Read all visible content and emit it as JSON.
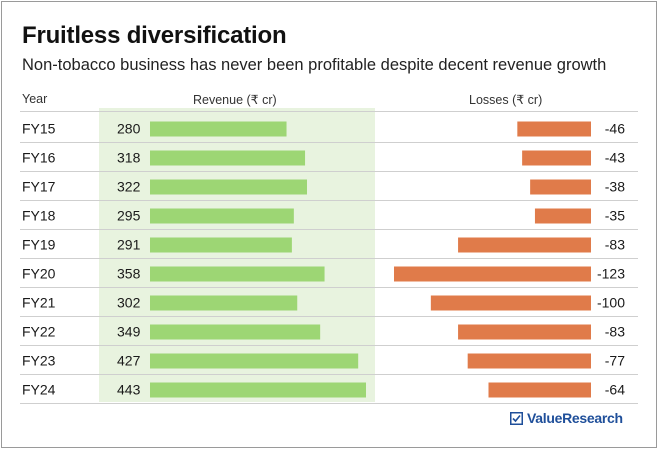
{
  "header": {
    "title": "Fruitless diversification",
    "subtitle": "Non-tobacco business has never been profitable despite decent revenue growth"
  },
  "columns": {
    "year": "Year",
    "revenue": "Revenue (₹ cr)",
    "losses": "Losses (₹ cr)"
  },
  "brand": {
    "name": "ValueResearch"
  },
  "colors": {
    "revenue_bar": "#9dd674",
    "revenue_band": "#e8f3df",
    "loss_bar": "#e07b4a",
    "divider": "#cfcfcf"
  },
  "chart_data": {
    "type": "bar",
    "categories": [
      "FY15",
      "FY16",
      "FY17",
      "FY18",
      "FY19",
      "FY20",
      "FY21",
      "FY22",
      "FY23",
      "FY24"
    ],
    "series": [
      {
        "name": "Revenue (₹ cr)",
        "values": [
          280,
          318,
          322,
          295,
          291,
          358,
          302,
          349,
          427,
          443
        ]
      },
      {
        "name": "Losses (₹ cr)",
        "values": [
          -46,
          -43,
          -38,
          -35,
          -83,
          -123,
          -100,
          -83,
          -77,
          -64
        ]
      }
    ],
    "title": "Fruitless diversification",
    "subtitle": "Non-tobacco business has never been profitable despite decent revenue growth"
  }
}
